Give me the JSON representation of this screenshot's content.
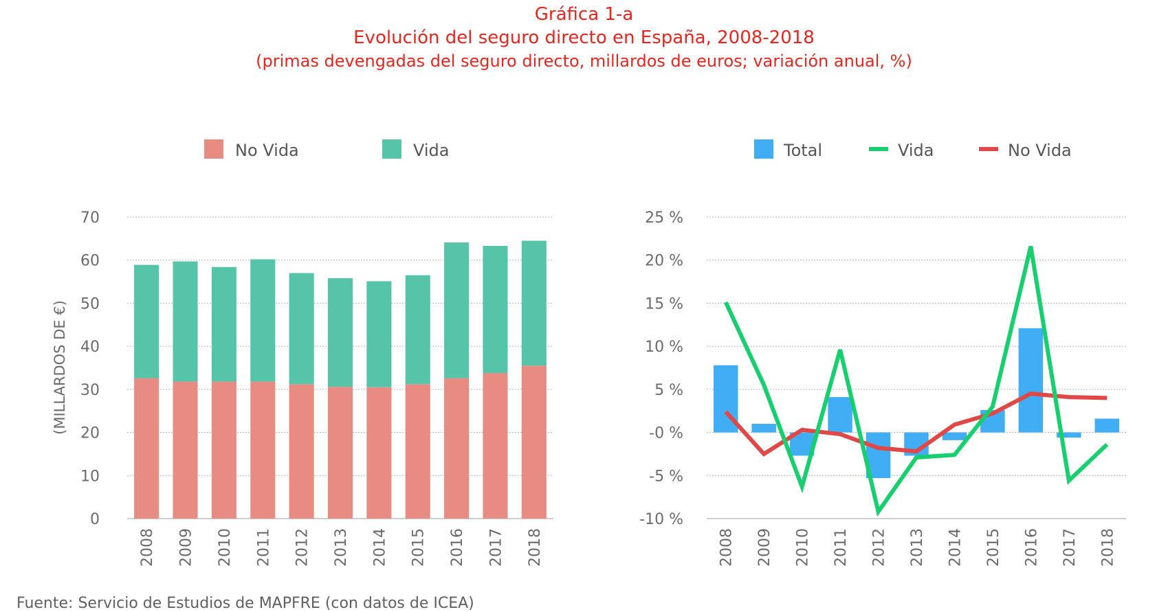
{
  "header": {
    "line1": "Gráfica 1-a",
    "line2": "Evolución del seguro directo en España, 2008-2018",
    "line3": "(primas devengadas del seguro directo, millardos de euros; variación anual, %)"
  },
  "footer": {
    "source": "Fuente: Servicio de Estudios de MAPFRE (con datos de ICEA)"
  },
  "colors": {
    "no_vida_bar": "#e88b82",
    "vida_bar": "#55c4a8",
    "total_bar": "#41adf4",
    "vida_line": "#17cf6e",
    "no_vida_line": "#e04848"
  },
  "chart_data": [
    {
      "type": "bar",
      "stacked": true,
      "ylabel": "(MILLARDOS DE €)",
      "xlabel": "",
      "ylim": [
        0,
        70
      ],
      "yticks": [
        0,
        10,
        20,
        30,
        40,
        50,
        60,
        70
      ],
      "ytick_labels": [
        "0",
        "10",
        "20",
        "30",
        "40",
        "50",
        "60",
        "70"
      ],
      "grid": true,
      "legend_position": "top",
      "categories": [
        "2008",
        "2009",
        "2010",
        "2011",
        "2012",
        "2013",
        "2014",
        "2015",
        "2016",
        "2017",
        "2018"
      ],
      "series": [
        {
          "name": "No Vida",
          "color": "#e88b82",
          "values": [
            32.6,
            31.8,
            31.8,
            31.8,
            31.2,
            30.6,
            30.5,
            31.2,
            32.6,
            33.8,
            35.5
          ]
        },
        {
          "name": "Vida",
          "color": "#55c4a8",
          "values": [
            26.3,
            27.9,
            26.6,
            28.4,
            25.8,
            25.2,
            24.6,
            25.3,
            31.5,
            29.5,
            29.0
          ]
        }
      ]
    },
    {
      "type": "bar+line",
      "ylim": [
        -10,
        25
      ],
      "yticks": [
        -10,
        -5,
        0,
        5,
        10,
        15,
        20,
        25
      ],
      "ytick_labels": [
        "-10 %",
        "-5 %",
        "-0 %",
        "5 %",
        "10 %",
        "15 %",
        "20 %",
        "25 %"
      ],
      "grid": true,
      "legend_position": "top",
      "categories": [
        "2008",
        "2009",
        "2010",
        "2011",
        "2012",
        "2013",
        "2014",
        "2015",
        "2016",
        "2017",
        "2018"
      ],
      "series": [
        {
          "name": "Total",
          "kind": "bar",
          "color": "#41adf4",
          "values": [
            7.8,
            1.0,
            -2.7,
            4.1,
            -5.3,
            -2.7,
            -0.9,
            2.6,
            12.1,
            -0.6,
            1.6
          ]
        },
        {
          "name": "Vida",
          "kind": "line",
          "color": "#17cf6e",
          "values": [
            15.1,
            5.5,
            -6.3,
            9.6,
            -9.2,
            -2.9,
            -2.6,
            3.0,
            21.6,
            -5.6,
            -1.4
          ]
        },
        {
          "name": "No Vida",
          "kind": "line",
          "color": "#e04848",
          "values": [
            2.4,
            -2.5,
            0.3,
            -0.2,
            -1.8,
            -2.2,
            0.9,
            2.2,
            4.5,
            4.1,
            4.0
          ]
        }
      ]
    }
  ]
}
